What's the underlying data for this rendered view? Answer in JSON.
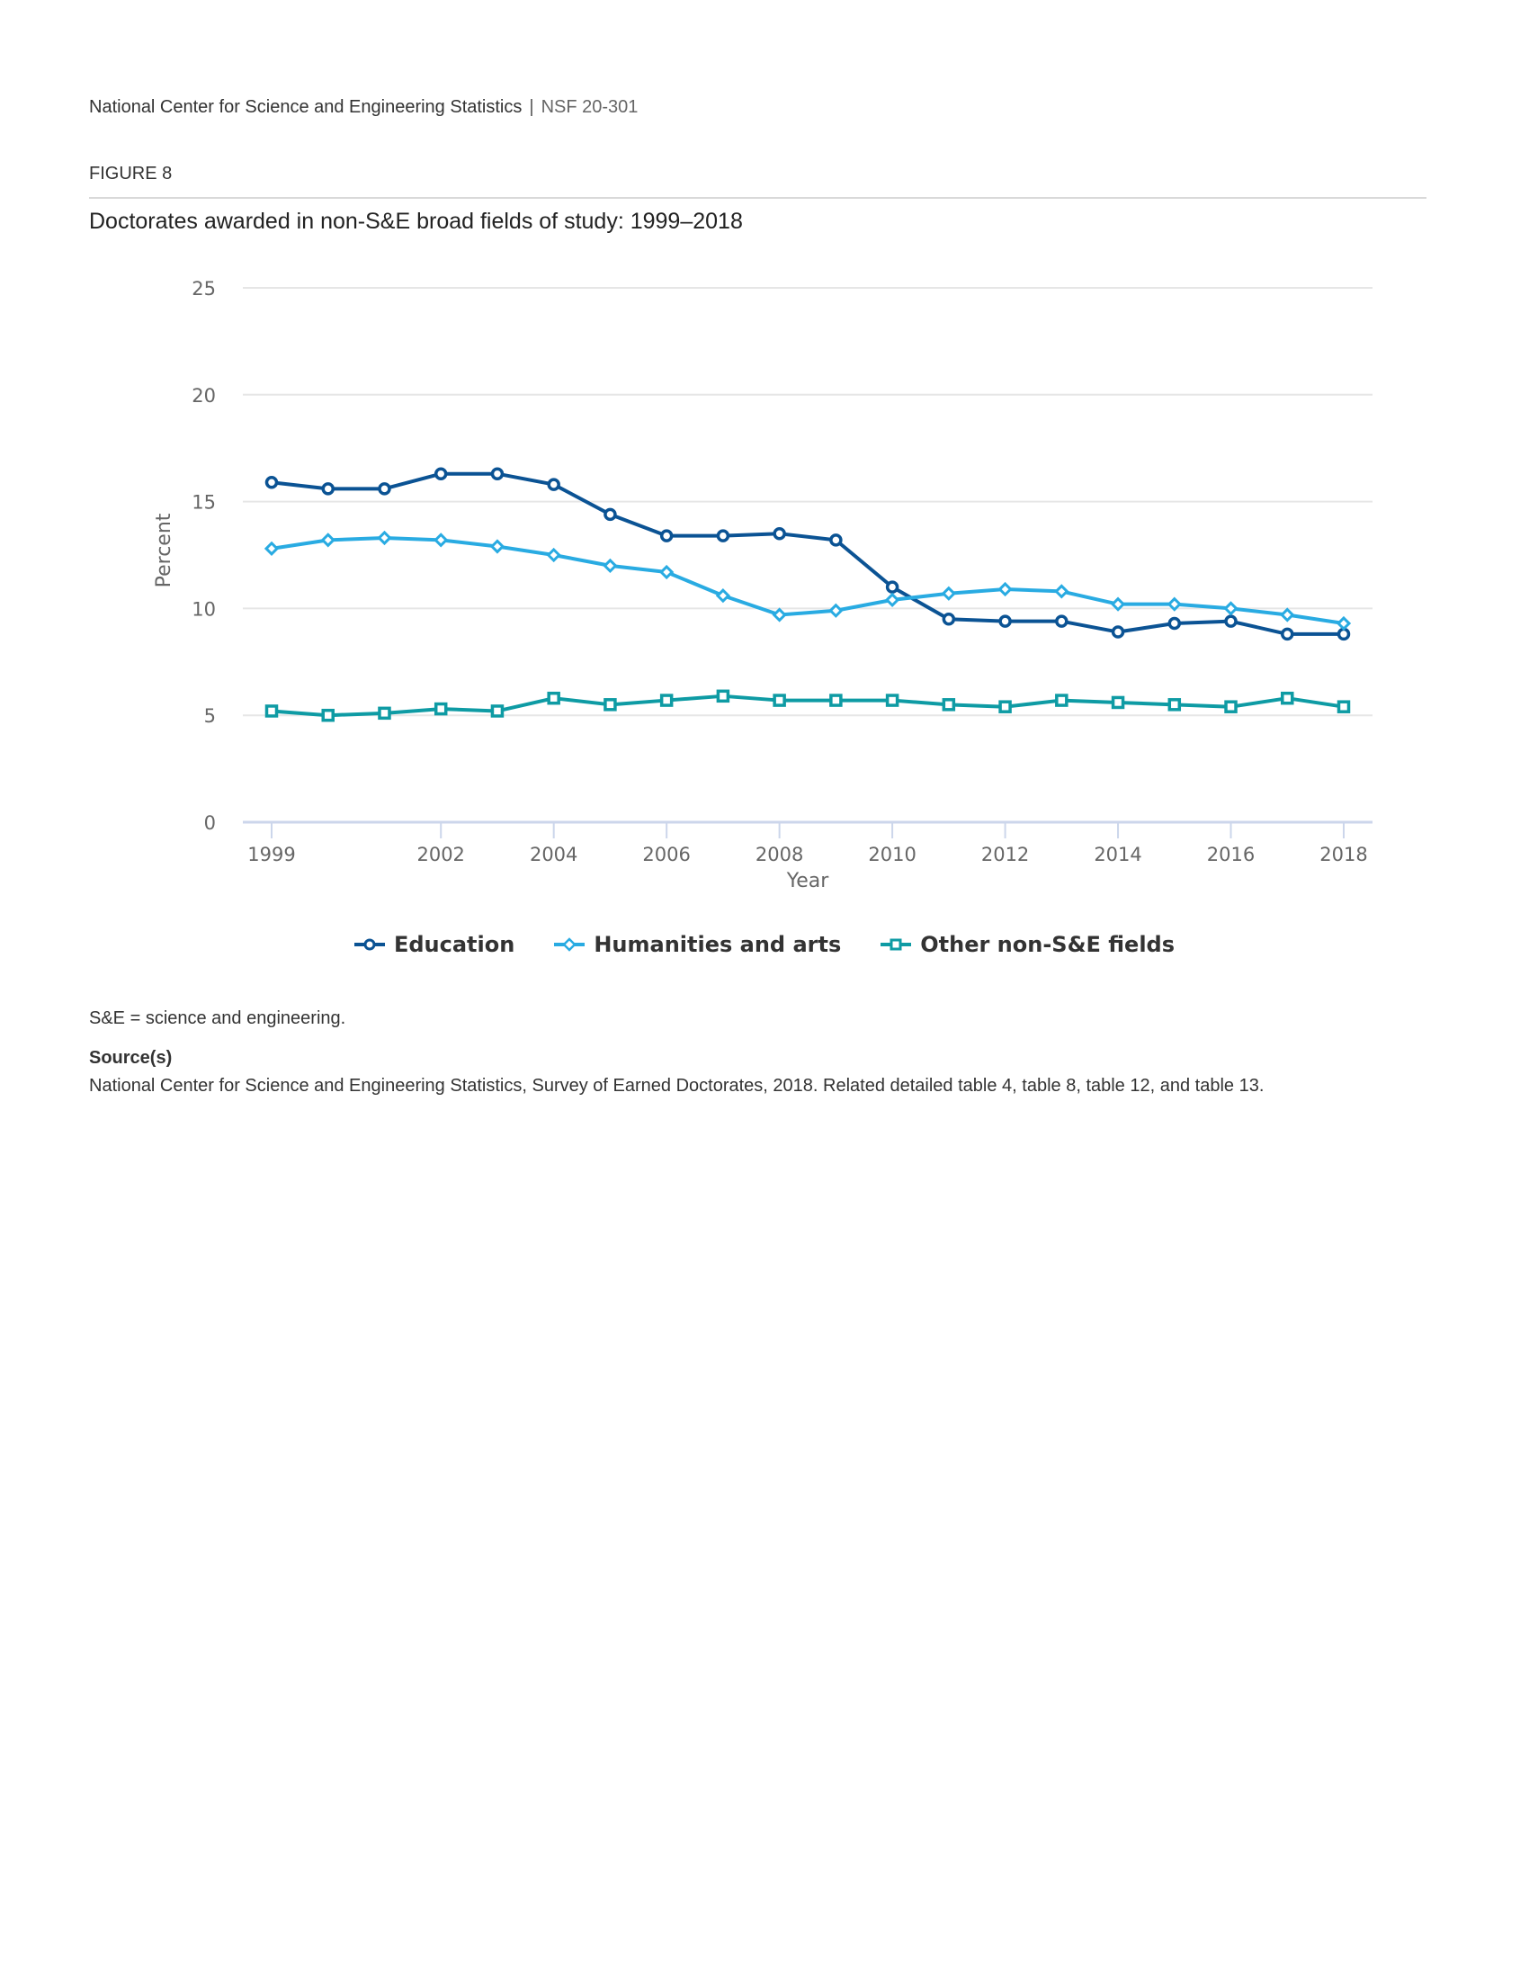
{
  "header": {
    "organization": "National Center for Science and Engineering Statistics",
    "separator": "|",
    "report_id": "NSF 20-301"
  },
  "figure": {
    "label": "FIGURE 8",
    "title": "Doctorates awarded in non-S&E broad fields of study: 1999–2018"
  },
  "chart_data": {
    "type": "line",
    "title": "Doctorates awarded in non-S&E broad fields of study: 1999–2018",
    "xlabel": "Year",
    "ylabel": "Percent",
    "ylim": [
      0,
      25
    ],
    "yticks": [
      0,
      5,
      10,
      15,
      20,
      25
    ],
    "xlim": [
      1999,
      2018
    ],
    "xticks": [
      1999,
      2002,
      2004,
      2006,
      2008,
      2010,
      2012,
      2014,
      2016,
      2018
    ],
    "grid": true,
    "legend_position": "bottom-center",
    "x": [
      1999,
      2000,
      2001,
      2002,
      2003,
      2004,
      2005,
      2006,
      2007,
      2008,
      2009,
      2010,
      2011,
      2012,
      2013,
      2014,
      2015,
      2016,
      2017,
      2018
    ],
    "series": [
      {
        "name": "Education",
        "color": "#0b5394",
        "marker": "circle",
        "values": [
          15.9,
          15.6,
          15.6,
          16.3,
          16.3,
          15.8,
          14.4,
          13.4,
          13.4,
          13.5,
          13.2,
          11.0,
          9.5,
          9.4,
          9.4,
          8.9,
          9.3,
          9.4,
          8.8,
          8.8
        ]
      },
      {
        "name": "Humanities and arts",
        "color": "#29abe2",
        "marker": "diamond",
        "values": [
          12.8,
          13.2,
          13.3,
          13.2,
          12.9,
          12.5,
          12.0,
          11.7,
          10.6,
          9.7,
          9.9,
          10.4,
          10.7,
          10.9,
          10.8,
          10.2,
          10.2,
          10.0,
          9.7,
          9.3
        ]
      },
      {
        "name": "Other non-S&E fields",
        "color": "#0e9ba4",
        "marker": "square",
        "values": [
          5.2,
          5.0,
          5.1,
          5.3,
          5.2,
          5.8,
          5.5,
          5.7,
          5.9,
          5.7,
          5.7,
          5.7,
          5.5,
          5.4,
          5.7,
          5.6,
          5.5,
          5.4,
          5.8,
          5.4
        ]
      }
    ]
  },
  "footer": {
    "note": "S&E = science and engineering.",
    "source_label": "Source(s)",
    "source_text": "National Center for Science and Engineering Statistics, Survey of Earned Doctorates, 2018. Related detailed table 4, table 8, table 12, and table 13."
  }
}
